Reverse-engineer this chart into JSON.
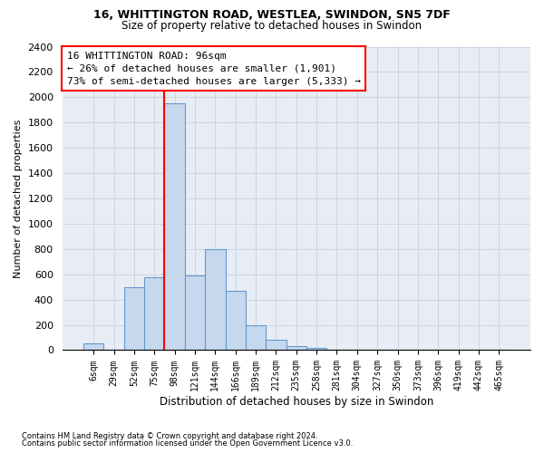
{
  "title1": "16, WHITTINGTON ROAD, WESTLEA, SWINDON, SN5 7DF",
  "title2": "Size of property relative to detached houses in Swindon",
  "xlabel": "Distribution of detached houses by size in Swindon",
  "ylabel": "Number of detached properties",
  "footnote1": "Contains HM Land Registry data © Crown copyright and database right 2024.",
  "footnote2": "Contains public sector information licensed under the Open Government Licence v3.0.",
  "categories": [
    "6sqm",
    "29sqm",
    "52sqm",
    "75sqm",
    "98sqm",
    "121sqm",
    "144sqm",
    "166sqm",
    "189sqm",
    "212sqm",
    "235sqm",
    "258sqm",
    "281sqm",
    "304sqm",
    "327sqm",
    "350sqm",
    "373sqm",
    "396sqm",
    "419sqm",
    "442sqm",
    "465sqm"
  ],
  "values": [
    50,
    0,
    500,
    580,
    1950,
    590,
    800,
    470,
    195,
    80,
    30,
    20,
    5,
    0,
    0,
    0,
    0,
    0,
    0,
    0,
    0
  ],
  "bar_color": "#c5d8ed",
  "bar_edge_color": "#6699cc",
  "grid_color": "#c8d0e0",
  "bg_color": "#e8edf5",
  "vline_x_index": 4,
  "vline_color": "red",
  "annotation_text": "16 WHITTINGTON ROAD: 96sqm\n← 26% of detached houses are smaller (1,901)\n73% of semi-detached houses are larger (5,333) →",
  "annotation_box_facecolor": "white",
  "annotation_box_edgecolor": "red",
  "ylim_max": 2400,
  "ytick_step": 200
}
